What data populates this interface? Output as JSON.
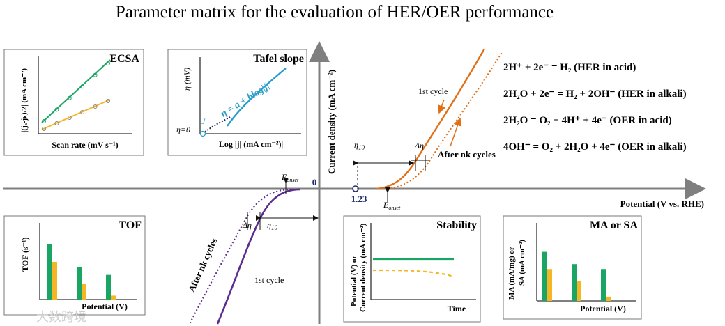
{
  "title": "Parameter matrix for the evaluation of HER/OER performance",
  "main_axes": {
    "y_label": "Current density (mA cm⁻²)",
    "x_label": "Potential (V vs. RHE)",
    "origin": "0",
    "tick_123": "1.23"
  },
  "her_annotations": {
    "e_onset_main": "E",
    "e_onset_sub": "onset",
    "eta10_main": "η",
    "eta10_sub": "10",
    "delta_eta": "Δη",
    "after_cycles": "After nk cycles",
    "first_cycle": "1st cycle"
  },
  "oer_annotations": {
    "e_onset_main": "E",
    "e_onset_sub": "onset",
    "eta10_main": "η",
    "eta10_sub": "10",
    "delta_eta": "Δη",
    "first_cycle": "1st cycle",
    "after_cycles": "After nk cycles"
  },
  "equations": [
    "2H⁺ + 2e⁻ = H₂ (HER in acid)",
    "2H₂O + 2e⁻ = H₂ + 2OH⁻ (HER in alkali)",
    "2H₂O = O₂ + 4H⁺ + 4e⁻ (OER in acid)",
    "4OH⁻ = O₂ + 2H₂O + 4e⁻ (OER in alkali)"
  ],
  "panels": {
    "ecsa": {
      "title": "ECSA",
      "x_label": "Scan rate (mV s⁻¹)",
      "y_label": "|(jₐ-jₖ)/2| (mA cm⁻²)"
    },
    "tafel": {
      "title": "Tafel slope",
      "x_label": "Log |j| (mA cm⁻²)|",
      "y_label": "η (mV)",
      "eq": "η = a + blog|j|",
      "eta0": "η=0",
      "j0": "J"
    },
    "tof": {
      "title": "TOF",
      "x_label": "Potential (V)",
      "y_label": "TOF (s⁻¹)"
    },
    "stability": {
      "title": "Stability",
      "x_label": "Time",
      "y_label_1": "Potential (V) or",
      "y_label_2": "Current density (mA cm⁻²)"
    },
    "ma_sa": {
      "title": "MA or SA",
      "x_label": "Potential (V)",
      "y_label_1": "MA  (mA/mg) or",
      "y_label_2": "SA (mA cm⁻²)"
    }
  },
  "bar_values": {
    "tof": {
      "green": [
        0.85,
        0.5,
        0.38
      ],
      "yellow": [
        0.58,
        0.24,
        0.06
      ]
    },
    "ma_sa": {
      "green": [
        0.8,
        0.6,
        0.52
      ],
      "yellow": [
        0.52,
        0.33,
        0.07
      ]
    }
  },
  "colors": {
    "green": "#1aa564",
    "yellow": "#f5b625",
    "orange": "#e07018",
    "purple": "#5b2c8c",
    "tafel_blue": "#2a9ec9",
    "axis_gray": "#7f7f7f",
    "navy": "#1f2d6e"
  },
  "watermark": "大数跨境"
}
